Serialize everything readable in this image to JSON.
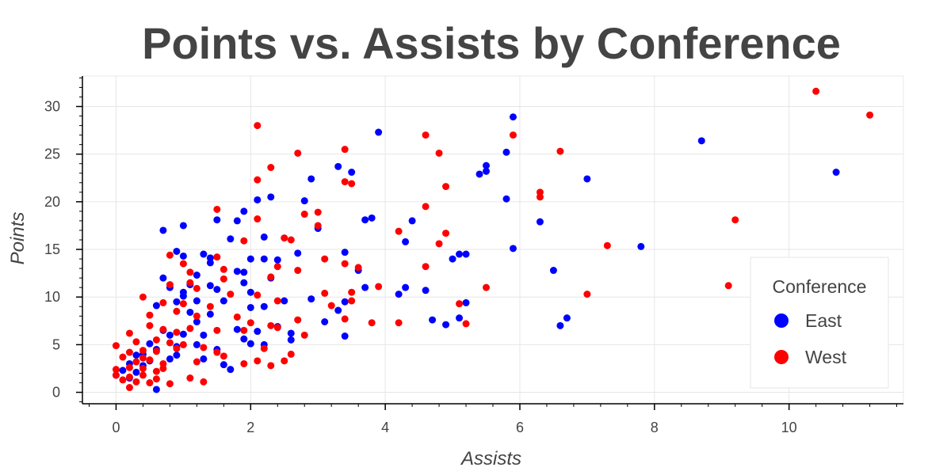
{
  "chart_data": {
    "type": "scatter",
    "title": "Points vs. Assists by Conference",
    "xlabel": "Assists",
    "ylabel": "Points",
    "xlim": [
      -0.5,
      11.7
    ],
    "ylim": [
      -1.2,
      33.2
    ],
    "x_ticks": [
      0,
      2,
      4,
      6,
      8,
      10
    ],
    "y_ticks": [
      0,
      5,
      10,
      15,
      20,
      25,
      30
    ],
    "grid": true,
    "legend": {
      "title": "Conference",
      "placement": "bottom-right"
    },
    "series": [
      {
        "name": "East",
        "color": "#0000ff",
        "points": [
          [
            5.9,
            28.9
          ],
          [
            3.9,
            27.3
          ],
          [
            5.8,
            25.2
          ],
          [
            3.3,
            23.7
          ],
          [
            3.5,
            23.1
          ],
          [
            5.5,
            23.8
          ],
          [
            5.5,
            23.2
          ],
          [
            5.4,
            22.9
          ],
          [
            7.0,
            22.4
          ],
          [
            2.9,
            22.4
          ],
          [
            2.3,
            20.5
          ],
          [
            2.1,
            20.2
          ],
          [
            2.8,
            20.1
          ],
          [
            5.8,
            20.3
          ],
          [
            1.9,
            19.0
          ],
          [
            1.5,
            18.1
          ],
          [
            1.8,
            18.0
          ],
          [
            3.7,
            18.1
          ],
          [
            3.8,
            18.3
          ],
          [
            4.4,
            18.0
          ],
          [
            6.3,
            17.9
          ],
          [
            0.7,
            17.0
          ],
          [
            1.0,
            17.5
          ],
          [
            3.0,
            17.2
          ],
          [
            1.7,
            16.1
          ],
          [
            2.2,
            16.3
          ],
          [
            4.3,
            15.8
          ],
          [
            5.9,
            15.1
          ],
          [
            7.8,
            15.3
          ],
          [
            0.9,
            14.8
          ],
          [
            1.3,
            14.5
          ],
          [
            3.4,
            14.7
          ],
          [
            5.1,
            14.5
          ],
          [
            5.2,
            14.5
          ],
          [
            5.0,
            14.0
          ],
          [
            1.0,
            14.3
          ],
          [
            1.4,
            14.1
          ],
          [
            2.0,
            14.0
          ],
          [
            2.2,
            14.0
          ],
          [
            2.4,
            13.9
          ],
          [
            2.7,
            14.6
          ],
          [
            3.6,
            12.8
          ],
          [
            6.5,
            12.8
          ],
          [
            0.7,
            12.0
          ],
          [
            1.2,
            12.3
          ],
          [
            1.4,
            13.6
          ],
          [
            1.9,
            12.6
          ],
          [
            2.3,
            12.0
          ],
          [
            0.8,
            11.0
          ],
          [
            1.0,
            10.5
          ],
          [
            1.1,
            11.3
          ],
          [
            1.4,
            11.2
          ],
          [
            1.5,
            10.8
          ],
          [
            1.9,
            11.5
          ],
          [
            2.0,
            10.5
          ],
          [
            3.7,
            11.0
          ],
          [
            4.3,
            11.0
          ],
          [
            4.2,
            10.3
          ],
          [
            4.6,
            10.7
          ],
          [
            0.6,
            9.1
          ],
          [
            0.9,
            9.5
          ],
          [
            1.0,
            10.1
          ],
          [
            1.2,
            9.6
          ],
          [
            1.6,
            9.6
          ],
          [
            2.0,
            8.9
          ],
          [
            2.2,
            9.0
          ],
          [
            2.5,
            9.6
          ],
          [
            3.3,
            8.6
          ],
          [
            3.4,
            9.5
          ],
          [
            5.2,
            9.4
          ],
          [
            6.7,
            7.8
          ],
          [
            6.6,
            7.0
          ],
          [
            4.7,
            7.6
          ],
          [
            4.9,
            7.1
          ],
          [
            5.1,
            7.8
          ],
          [
            3.1,
            7.4
          ],
          [
            2.6,
            6.2
          ],
          [
            2.6,
            5.5
          ],
          [
            1.8,
            6.6
          ],
          [
            1.9,
            5.6
          ],
          [
            2.0,
            5.1
          ],
          [
            2.2,
            5.0
          ],
          [
            1.3,
            6.0
          ],
          [
            1.0,
            6.1
          ],
          [
            0.8,
            6.0
          ],
          [
            1.7,
            2.4
          ],
          [
            1.6,
            2.9
          ],
          [
            1.3,
            3.5
          ],
          [
            1.2,
            5.0
          ],
          [
            0.9,
            4.8
          ],
          [
            0.8,
            3.5
          ],
          [
            0.6,
            4.5
          ],
          [
            0.5,
            3.3
          ],
          [
            0.4,
            2.8
          ],
          [
            0.3,
            3.9
          ],
          [
            0.2,
            3.0
          ],
          [
            0.1,
            2.3
          ],
          [
            0.0,
            1.8
          ],
          [
            0.2,
            1.5
          ],
          [
            0.6,
            0.3
          ],
          [
            3.4,
            5.9
          ],
          [
            8.7,
            26.4
          ],
          [
            10.7,
            23.1
          ],
          [
            1.2,
            7.4
          ],
          [
            1.1,
            8.4
          ],
          [
            0.4,
            4.0
          ],
          [
            0.5,
            5.1
          ],
          [
            1.5,
            4.5
          ],
          [
            2.4,
            6.9
          ],
          [
            1.4,
            8.2
          ],
          [
            0.3,
            2.1
          ],
          [
            0.9,
            3.9
          ],
          [
            2.1,
            6.4
          ],
          [
            1.8,
            12.7
          ],
          [
            2.9,
            9.8
          ],
          [
            0.7,
            6.5
          ]
        ]
      },
      {
        "name": "West",
        "color": "#ff0000",
        "points": [
          [
            10.4,
            31.6
          ],
          [
            11.2,
            29.1
          ],
          [
            2.1,
            28.0
          ],
          [
            4.6,
            27.0
          ],
          [
            5.9,
            27.0
          ],
          [
            3.4,
            25.5
          ],
          [
            2.7,
            25.1
          ],
          [
            4.8,
            25.1
          ],
          [
            6.6,
            25.3
          ],
          [
            2.3,
            23.6
          ],
          [
            2.1,
            22.3
          ],
          [
            3.4,
            22.1
          ],
          [
            3.5,
            21.9
          ],
          [
            4.9,
            21.6
          ],
          [
            6.3,
            21.0
          ],
          [
            6.3,
            20.5
          ],
          [
            4.6,
            19.5
          ],
          [
            1.5,
            19.2
          ],
          [
            3.0,
            18.9
          ],
          [
            2.8,
            18.7
          ],
          [
            2.1,
            18.2
          ],
          [
            9.2,
            18.1
          ],
          [
            3.0,
            17.5
          ],
          [
            4.2,
            16.9
          ],
          [
            4.9,
            16.7
          ],
          [
            2.5,
            16.2
          ],
          [
            2.6,
            16.0
          ],
          [
            1.9,
            15.9
          ],
          [
            4.8,
            15.6
          ],
          [
            7.3,
            15.4
          ],
          [
            0.8,
            14.4
          ],
          [
            1.5,
            14.2
          ],
          [
            1.0,
            13.5
          ],
          [
            2.4,
            13.2
          ],
          [
            3.1,
            14.0
          ],
          [
            3.4,
            13.5
          ],
          [
            4.6,
            13.2
          ],
          [
            3.6,
            13.1
          ],
          [
            1.1,
            12.6
          ],
          [
            1.6,
            12.9
          ],
          [
            2.7,
            12.8
          ],
          [
            2.3,
            12.1
          ],
          [
            1.1,
            11.5
          ],
          [
            1.2,
            10.9
          ],
          [
            1.6,
            11.9
          ],
          [
            0.8,
            11.3
          ],
          [
            0.4,
            10.0
          ],
          [
            1.7,
            10.3
          ],
          [
            2.1,
            10.2
          ],
          [
            3.1,
            10.4
          ],
          [
            3.5,
            10.5
          ],
          [
            3.9,
            11.1
          ],
          [
            5.5,
            11.0
          ],
          [
            9.1,
            11.2
          ],
          [
            7.0,
            10.3
          ],
          [
            0.7,
            9.4
          ],
          [
            1.0,
            9.3
          ],
          [
            1.4,
            9.0
          ],
          [
            2.4,
            9.6
          ],
          [
            3.2,
            9.1
          ],
          [
            3.5,
            9.6
          ],
          [
            5.1,
            9.3
          ],
          [
            0.5,
            8.1
          ],
          [
            0.9,
            8.5
          ],
          [
            1.2,
            8.0
          ],
          [
            1.8,
            7.9
          ],
          [
            2.0,
            7.3
          ],
          [
            2.3,
            7.0
          ],
          [
            2.7,
            7.6
          ],
          [
            3.4,
            7.7
          ],
          [
            3.8,
            7.3
          ],
          [
            4.2,
            7.3
          ],
          [
            5.2,
            7.2
          ],
          [
            0.2,
            6.2
          ],
          [
            0.5,
            7.0
          ],
          [
            0.7,
            6.6
          ],
          [
            0.9,
            6.3
          ],
          [
            1.1,
            6.7
          ],
          [
            1.5,
            6.5
          ],
          [
            1.9,
            6.5
          ],
          [
            2.4,
            6.8
          ],
          [
            2.8,
            6.0
          ],
          [
            0.3,
            5.3
          ],
          [
            0.6,
            5.5
          ],
          [
            0.8,
            5.2
          ],
          [
            1.0,
            5.0
          ],
          [
            1.3,
            4.7
          ],
          [
            1.5,
            4.2
          ],
          [
            2.2,
            4.6
          ],
          [
            2.6,
            4.0
          ],
          [
            0.0,
            4.9
          ],
          [
            0.2,
            4.2
          ],
          [
            0.4,
            4.4
          ],
          [
            0.6,
            4.3
          ],
          [
            0.9,
            4.6
          ],
          [
            1.6,
            3.8
          ],
          [
            2.1,
            3.3
          ],
          [
            2.5,
            3.3
          ],
          [
            0.1,
            3.7
          ],
          [
            0.3,
            3.2
          ],
          [
            0.5,
            3.4
          ],
          [
            0.7,
            3.0
          ],
          [
            1.2,
            3.2
          ],
          [
            1.9,
            3.0
          ],
          [
            2.3,
            2.8
          ],
          [
            0.0,
            2.4
          ],
          [
            0.2,
            2.6
          ],
          [
            0.4,
            2.5
          ],
          [
            0.6,
            2.2
          ],
          [
            0.0,
            1.8
          ],
          [
            0.2,
            1.6
          ],
          [
            0.4,
            1.8
          ],
          [
            0.1,
            1.3
          ],
          [
            0.3,
            1.1
          ],
          [
            0.5,
            1.0
          ],
          [
            0.8,
            0.9
          ],
          [
            1.3,
            1.1
          ],
          [
            1.1,
            1.5
          ],
          [
            0.2,
            0.5
          ],
          [
            0.6,
            1.4
          ],
          [
            0.7,
            2.5
          ],
          [
            0.4,
            3.6
          ]
        ]
      }
    ]
  }
}
